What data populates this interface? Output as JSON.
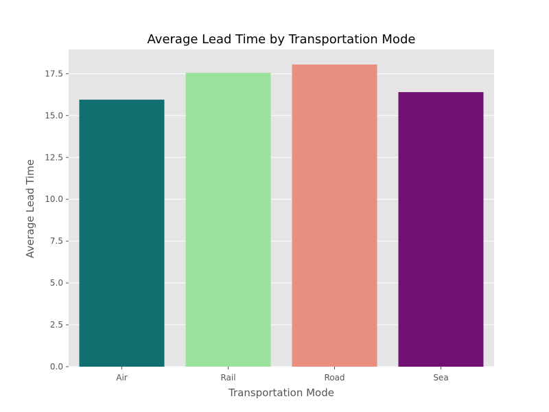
{
  "chart_data": {
    "type": "bar",
    "title": "Average Lead Time by Transportation Mode",
    "xlabel": "Transportation Mode",
    "ylabel": "Average Lead Time",
    "categories": [
      "Air",
      "Rail",
      "Road",
      "Sea"
    ],
    "values": [
      15.95,
      17.55,
      18.05,
      16.4
    ],
    "colors": [
      "#107070",
      "#9ae29b",
      "#e88f82",
      "#701070"
    ],
    "ylim": [
      0,
      18.95
    ],
    "yticks": [
      0.0,
      2.5,
      5.0,
      7.5,
      10.0,
      12.5,
      15.0,
      17.5
    ],
    "ytick_labels": [
      "0.0",
      "2.5",
      "5.0",
      "7.5",
      "10.0",
      "12.5",
      "15.0",
      "17.5"
    ],
    "grid": true,
    "background_color": "#e5e5e5",
    "grid_color": "#ffffff"
  }
}
